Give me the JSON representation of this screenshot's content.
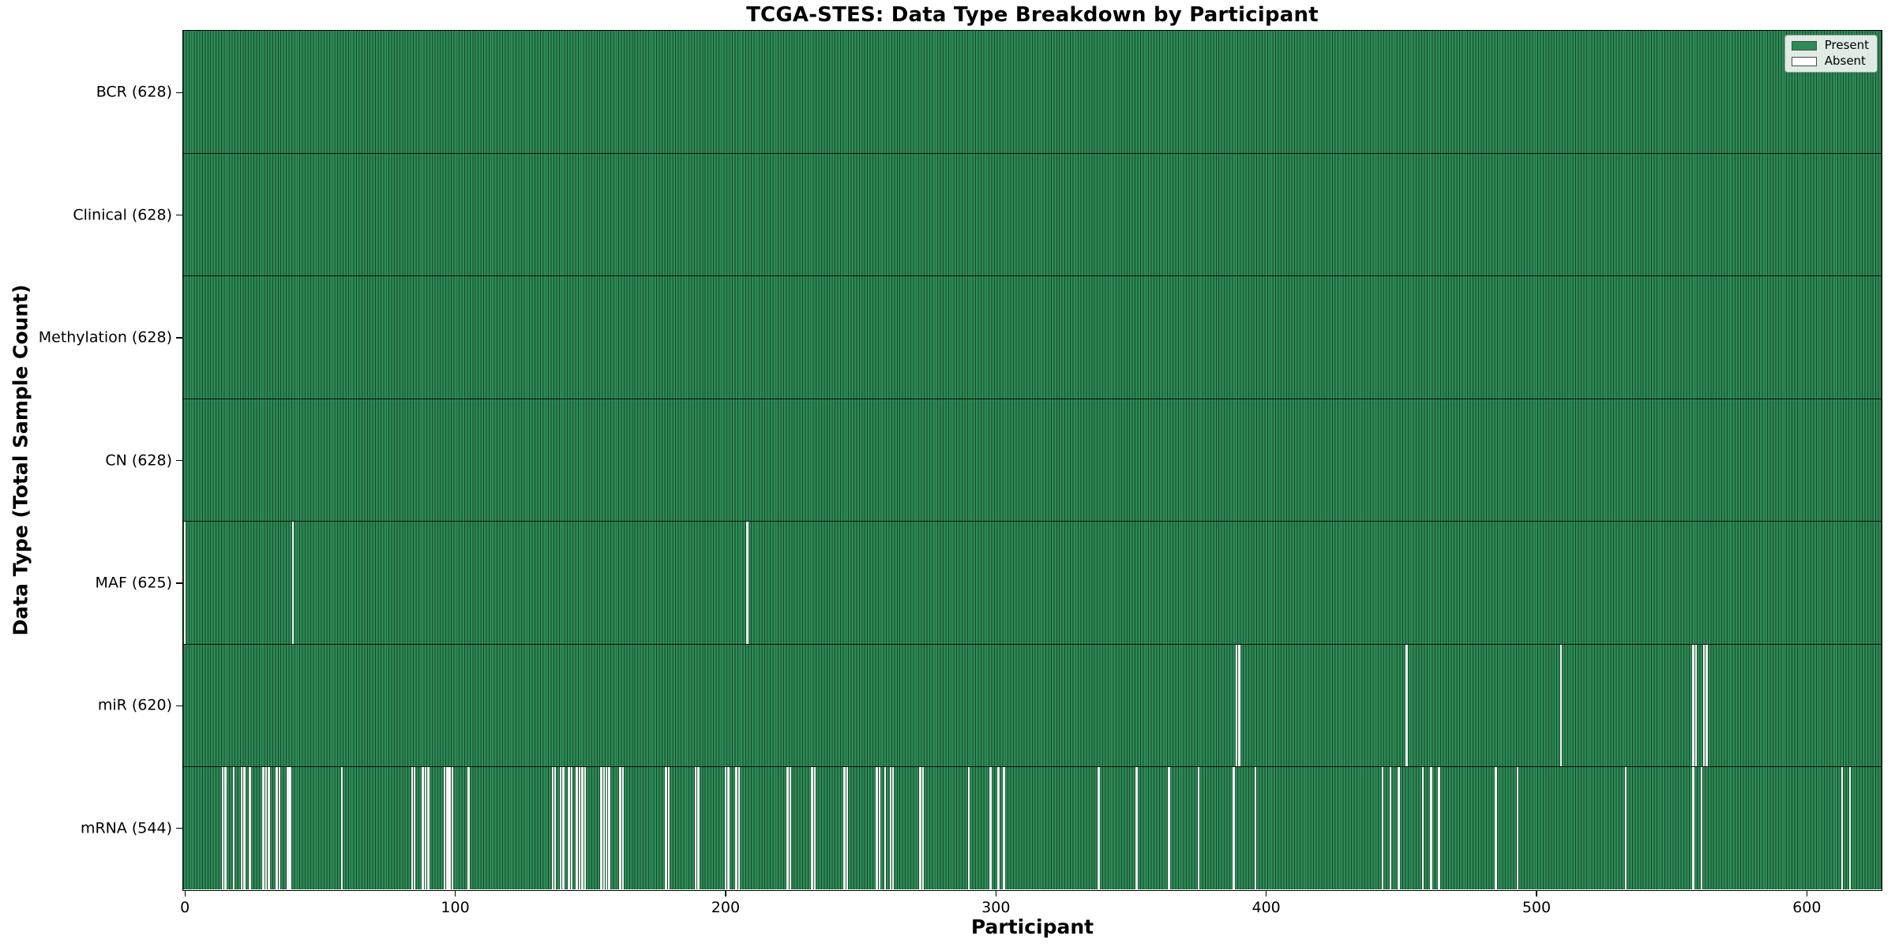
{
  "chart_data": {
    "type": "heatmap",
    "title": "TCGA-STES: Data Type Breakdown by Participant",
    "xlabel": "Participant",
    "ylabel": "Data Type (Total Sample Count)",
    "x_ticks": [
      0,
      100,
      200,
      300,
      400,
      500,
      600
    ],
    "total_participants": 628,
    "grid": false,
    "legend_position": "upper right",
    "legend": [
      {
        "label": "Present",
        "color": "#2e8b57"
      },
      {
        "label": "Absent",
        "color": "#ffffff"
      }
    ],
    "colors": {
      "present_fill": "#2e8b57",
      "bar_edge": "#16492c",
      "absent_fill": "#f8f7f5",
      "background": "#ffffff",
      "spine": "#000000"
    },
    "rows": [
      {
        "label": "BCR",
        "count": 628,
        "tick_label": "BCR (628)",
        "absent": []
      },
      {
        "label": "Clinical",
        "count": 628,
        "tick_label": "Clinical (628)",
        "absent": []
      },
      {
        "label": "Methylation",
        "count": 628,
        "tick_label": "Methylation (628)",
        "absent": []
      },
      {
        "label": "CN",
        "count": 628,
        "tick_label": "CN (628)",
        "absent": []
      },
      {
        "label": "MAF",
        "count": 625,
        "tick_label": "MAF (625)",
        "absent": [
          0,
          40,
          208
        ]
      },
      {
        "label": "miR",
        "count": 620,
        "tick_label": "miR (620)",
        "absent": [
          389,
          390,
          452,
          509,
          558,
          559,
          562,
          563
        ]
      },
      {
        "label": "mRNA",
        "count": 544,
        "tick_label": "mRNA (544)",
        "absent": [
          14,
          15,
          18,
          21,
          22,
          24,
          29,
          30,
          31,
          34,
          35,
          38,
          39,
          58,
          84,
          85,
          88,
          89,
          90,
          96,
          97,
          98,
          99,
          105,
          136,
          137,
          139,
          140,
          142,
          143,
          145,
          146,
          147,
          148,
          154,
          155,
          156,
          157,
          161,
          162,
          178,
          179,
          189,
          190,
          200,
          201,
          204,
          205,
          223,
          224,
          232,
          233,
          244,
          245,
          256,
          257,
          259,
          261,
          262,
          272,
          273,
          290,
          298,
          301,
          303,
          338,
          352,
          364,
          375,
          388,
          396,
          443,
          446,
          449,
          458,
          461,
          464,
          485,
          493,
          533,
          558,
          561,
          613,
          616
        ]
      }
    ]
  }
}
